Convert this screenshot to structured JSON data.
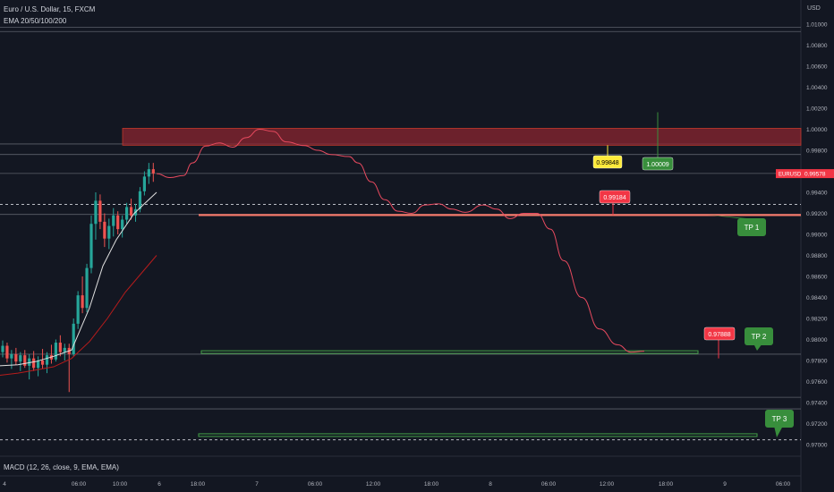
{
  "header": {
    "symbol_title": "Euro / U.S. Dollar, 15, FXCM",
    "indicator": "EMA 20/50/100/200",
    "currency": "USD"
  },
  "footer": {
    "macd_label": "MACD (12, 26, close, 9, EMA, EMA)"
  },
  "colors": {
    "background": "#131722",
    "grid": "#2a2e39",
    "axis_text": "#b2b5be",
    "up": "#26a69a",
    "down": "#ef5350",
    "resistance_zone": "#8b2530",
    "projection": "#e84a5f",
    "tp_green": "#388e3c",
    "level_orange": "#f4786a",
    "label_yellow": "#ffeb3b",
    "last_price": "#f23645"
  },
  "chart_data": {
    "type": "candlestick",
    "title": "Euro / U.S. Dollar, 15, FXCM",
    "ylim": [
      0.969,
      1.0106
    ],
    "y_ticks": [
      "1.01000",
      "1.00800",
      "1.00600",
      "1.00400",
      "1.00200",
      "1.00000",
      "0.99800",
      "0.99600",
      "0.99400",
      "0.99200",
      "0.99000",
      "0.98800",
      "0.98600",
      "0.98400",
      "0.98200",
      "0.98000",
      "0.97800",
      "0.97600",
      "0.97400",
      "0.97200",
      "0.97000"
    ],
    "x_ticks": [
      "4",
      "06:00",
      "10:00",
      "6",
      "18:00",
      "7",
      "06:00",
      "12:00",
      "18:00",
      "8",
      "06:00",
      "12:00",
      "18:00",
      "9",
      "06:00"
    ],
    "last_price": {
      "label": "EURUSD",
      "value": 0.99578
    },
    "resistance_zone": {
      "from": 0.99848,
      "to": 1.00009
    },
    "price_labels": [
      {
        "text": "0.99848",
        "value": 0.99848,
        "style": "yellow"
      },
      {
        "text": "1.00009",
        "value": 1.00009,
        "style": "green"
      },
      {
        "text": "0.99184",
        "value": 0.99184,
        "style": "red"
      },
      {
        "text": "0.97888",
        "value": 0.97888,
        "style": "red"
      }
    ],
    "take_profits": [
      {
        "text": "TP 1",
        "value": 0.99184
      },
      {
        "text": "TP 2",
        "value": 0.97888
      },
      {
        "text": "TP 3",
        "value": 0.97088
      }
    ],
    "horizontal_lines": [
      1.0097,
      1.0093,
      0.9986,
      0.9976,
      0.9958,
      0.9919,
      0.9786,
      0.9745,
      0.9734
    ],
    "dashed_lines": [
      0.99285,
      0.97045
    ],
    "candles": [
      [
        0.9788,
        0.9799,
        0.9783,
        0.9794
      ],
      [
        0.9794,
        0.9797,
        0.9778,
        0.9782
      ],
      [
        0.9782,
        0.979,
        0.9772,
        0.9786
      ],
      [
        0.9786,
        0.9792,
        0.9776,
        0.9779
      ],
      [
        0.9779,
        0.9788,
        0.977,
        0.9785
      ],
      [
        0.9785,
        0.979,
        0.9773,
        0.9775
      ],
      [
        0.9775,
        0.9786,
        0.9762,
        0.9782
      ],
      [
        0.9782,
        0.9789,
        0.977,
        0.9773
      ],
      [
        0.9773,
        0.9784,
        0.9765,
        0.978
      ],
      [
        0.978,
        0.9791,
        0.9772,
        0.9776
      ],
      [
        0.9776,
        0.9788,
        0.9768,
        0.9785
      ],
      [
        0.9785,
        0.9795,
        0.9777,
        0.9781
      ],
      [
        0.9781,
        0.98,
        0.9779,
        0.9797
      ],
      [
        0.9797,
        0.9804,
        0.9784,
        0.9788
      ],
      [
        0.9788,
        0.9796,
        0.978,
        0.9792
      ],
      [
        0.9792,
        0.9796,
        0.975,
        0.9786
      ],
      [
        0.9786,
        0.982,
        0.9784,
        0.9815
      ],
      [
        0.9815,
        0.9846,
        0.981,
        0.9842
      ],
      [
        0.9842,
        0.986,
        0.9825,
        0.983
      ],
      [
        0.983,
        0.9872,
        0.9826,
        0.9868
      ],
      [
        0.9868,
        0.9918,
        0.9863,
        0.991
      ],
      [
        0.991,
        0.994,
        0.9895,
        0.9932
      ],
      [
        0.9932,
        0.9938,
        0.9905,
        0.9912
      ],
      [
        0.9912,
        0.992,
        0.9888,
        0.9896
      ],
      [
        0.9896,
        0.9915,
        0.9886,
        0.9908
      ],
      [
        0.9908,
        0.9925,
        0.9898,
        0.9918
      ],
      [
        0.9918,
        0.9922,
        0.99,
        0.9905
      ],
      [
        0.9905,
        0.9918,
        0.9897,
        0.9914
      ],
      [
        0.9914,
        0.993,
        0.991,
        0.9926
      ],
      [
        0.9926,
        0.9934,
        0.9914,
        0.9918
      ],
      [
        0.9918,
        0.9929,
        0.9912,
        0.9924
      ],
      [
        0.9924,
        0.9945,
        0.9921,
        0.9941
      ],
      [
        0.9941,
        0.996,
        0.9937,
        0.9955
      ],
      [
        0.9955,
        0.9968,
        0.9948,
        0.9962
      ],
      [
        0.9962,
        0.9968,
        0.995,
        0.9958
      ]
    ],
    "ema_fast": [
      [
        0,
        0.9775
      ],
      [
        20,
        0.9776
      ],
      [
        40,
        0.9779
      ],
      [
        60,
        0.9784
      ],
      [
        80,
        0.979
      ],
      [
        100,
        0.983
      ],
      [
        115,
        0.987
      ],
      [
        130,
        0.9895
      ],
      [
        150,
        0.992
      ],
      [
        175,
        0.994
      ]
    ],
    "ema_slow": [
      [
        0,
        0.9766
      ],
      [
        20,
        0.9768
      ],
      [
        40,
        0.9771
      ],
      [
        60,
        0.9774
      ],
      [
        80,
        0.9782
      ],
      [
        100,
        0.9798
      ],
      [
        120,
        0.982
      ],
      [
        140,
        0.9845
      ],
      [
        160,
        0.9865
      ],
      [
        175,
        0.988
      ]
    ],
    "projection": [
      [
        175,
        0.99578
      ],
      [
        190,
        0.9954
      ],
      [
        205,
        0.9956
      ],
      [
        215,
        0.9968
      ],
      [
        230,
        0.9984
      ],
      [
        245,
        0.9987
      ],
      [
        260,
        0.9983
      ],
      [
        275,
        0.9992
      ],
      [
        290,
        1.0
      ],
      [
        305,
        0.9998
      ],
      [
        320,
        0.9988
      ],
      [
        340,
        0.99845
      ],
      [
        355,
        0.998
      ],
      [
        370,
        0.9976
      ],
      [
        390,
        0.9974
      ],
      [
        400,
        0.9968
      ],
      [
        415,
        0.995
      ],
      [
        430,
        0.9933
      ],
      [
        445,
        0.9922
      ],
      [
        460,
        0.992
      ],
      [
        475,
        0.9928
      ],
      [
        490,
        0.9929
      ],
      [
        505,
        0.9924
      ],
      [
        520,
        0.9921
      ],
      [
        540,
        0.9928
      ],
      [
        555,
        0.9924
      ],
      [
        570,
        0.9915
      ],
      [
        585,
        0.992
      ],
      [
        600,
        0.992
      ],
      [
        615,
        0.9905
      ],
      [
        630,
        0.9875
      ],
      [
        650,
        0.984
      ],
      [
        670,
        0.981
      ],
      [
        690,
        0.9795
      ],
      [
        705,
        0.9788
      ],
      [
        720,
        0.97888
      ]
    ]
  }
}
